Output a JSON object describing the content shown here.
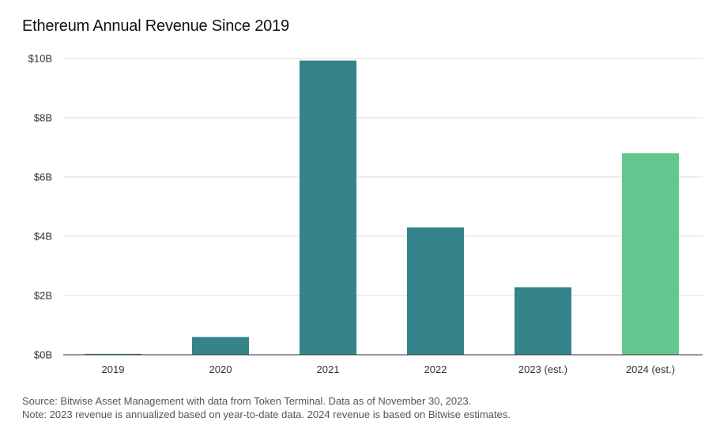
{
  "title": "Ethereum Annual Revenue Since 2019",
  "source_text": "Source:  Bitwise Asset Management with data from Token Terminal. Data as of November 30, 2023.",
  "note_text": "Note: 2023 revenue is annualized based on year-to-date data. 2024 revenue is based on Bitwise estimates.",
  "chart_data": {
    "type": "bar",
    "title": "Ethereum Annual Revenue Since 2019",
    "xlabel": "",
    "ylabel": "",
    "categories": [
      "2019",
      "2020",
      "2021",
      "2022",
      "2023 (est.)",
      "2024 (est.)"
    ],
    "values": [
      0.03,
      0.6,
      9.93,
      4.3,
      2.28,
      6.8
    ],
    "unit": "billion USD",
    "ylim": [
      0,
      10
    ],
    "y_ticks": [
      0,
      2,
      4,
      6,
      8,
      10
    ],
    "y_tick_labels": [
      "$0B",
      "$2B",
      "$4B",
      "$6B",
      "$8B",
      "$10B"
    ],
    "grid": true,
    "legend": "none",
    "colors": {
      "actual": "#35838b",
      "estimate_2024": "#63c78f",
      "grid": "#dcdcdc",
      "axis": "#333333"
    },
    "bar_colors": [
      "#35838b",
      "#35838b",
      "#35838b",
      "#35838b",
      "#35838b",
      "#63c78f"
    ]
  }
}
